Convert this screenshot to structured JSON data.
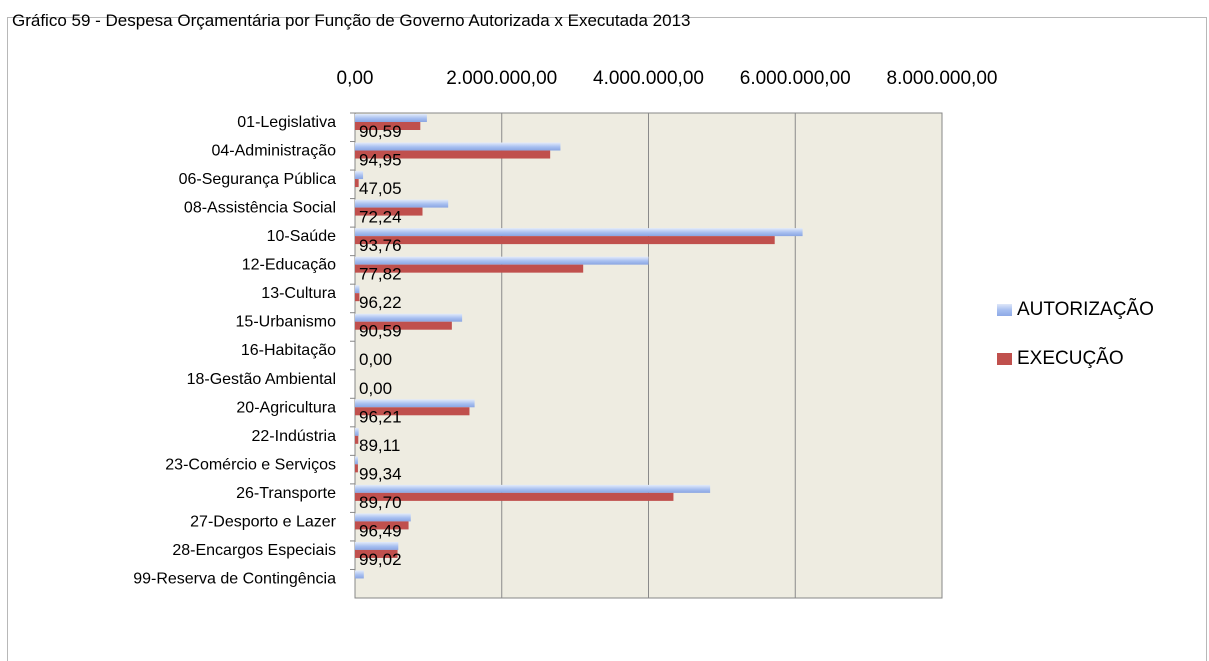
{
  "caption": "Gráfico 59 - Despesa Orçamentária por Função de Governo Autorizada x Executada  2013",
  "chart_data": {
    "type": "bar",
    "orientation": "horizontal",
    "categories": [
      "01-Legislativa",
      "04-Administração",
      "06-Segurança Pública",
      "08-Assistência Social",
      "10-Saúde",
      "12-Educação",
      "13-Cultura",
      "15-Urbanismo",
      "16-Habitação",
      "18-Gestão Ambiental",
      "20-Agricultura",
      "22-Indústria",
      "23-Comércio e Serviços",
      "26-Transporte",
      "27-Desporto e Lazer",
      "28-Encargos Especiais",
      "99-Reserva de Contingência"
    ],
    "series": [
      {
        "name": "AUTORIZAÇÃO",
        "color": "#a7bff0",
        "values": [
          980000,
          2800000,
          110000,
          1270000,
          6100000,
          4000000,
          60000,
          1460000,
          0,
          0,
          1630000,
          50000,
          40000,
          4840000,
          760000,
          590000,
          120000
        ]
      },
      {
        "name": "EXECUÇÃO",
        "color": "#c0504d",
        "values": [
          890000,
          2660000,
          50000,
          920000,
          5720000,
          3110000,
          60000,
          1320000,
          0,
          0,
          1560000,
          45000,
          40000,
          4340000,
          730000,
          580000,
          0
        ]
      }
    ],
    "data_labels": [
      "90,59",
      "94,95",
      "47,05",
      "72,24",
      "93,76",
      "77,82",
      "96,22",
      "90,59",
      "0,00",
      "0,00",
      "96,21",
      "89,11",
      "99,34",
      "89,70",
      "96,49",
      "99,02",
      ""
    ],
    "x_ticks": [
      "0,00",
      "2.000.000,00",
      "4.000.000,00",
      "6.000.000,00",
      "8.000.000,00"
    ],
    "x_tick_values": [
      0,
      2000000,
      4000000,
      6000000,
      8000000
    ],
    "xlim": [
      0,
      8000000
    ],
    "axis_position": "top",
    "grid": true,
    "plot_background": "#eeece1",
    "legend_position": "right"
  }
}
